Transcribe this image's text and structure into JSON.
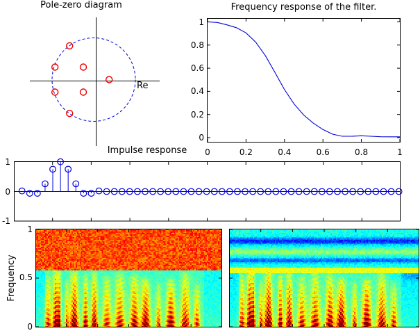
{
  "figure": {
    "background": "#ffffff",
    "line_blue": "#0000dd",
    "marker_red": "#ee0000",
    "axis_black": "#000000"
  },
  "chart_data": [
    {
      "id": "pole_zero",
      "type": "scatter",
      "title": "Pole-zero diagram",
      "xlabel": "Re",
      "unit_circle": {
        "radius": 1,
        "style": "dashed",
        "color": "#0000dd"
      },
      "zeros": [
        {
          "re": -0.58,
          "im": 0.81
        },
        {
          "re": -0.93,
          "im": 0.3
        },
        {
          "re": -0.25,
          "im": 0.3
        },
        {
          "re": 0.37,
          "im": 0.0
        },
        {
          "re": -0.93,
          "im": -0.3
        },
        {
          "re": -0.25,
          "im": -0.3
        },
        {
          "re": -0.58,
          "im": -0.81
        }
      ],
      "marker": "o",
      "marker_color": "#ee0000"
    },
    {
      "id": "frequency_response",
      "type": "line",
      "title": "Frequency response of the filter.",
      "color": "#0000dd",
      "xlim": [
        0,
        1
      ],
      "ylim": [
        0,
        1
      ],
      "x_ticks": [
        "0",
        "0.2",
        "0.4",
        "0.6",
        "0.8",
        "1"
      ],
      "y_ticks": [
        "0",
        "0.2",
        "0.4",
        "0.6",
        "0.8",
        "1"
      ],
      "x": [
        0,
        0.05,
        0.1,
        0.15,
        0.2,
        0.25,
        0.3,
        0.35,
        0.4,
        0.45,
        0.5,
        0.55,
        0.6,
        0.65,
        0.7,
        0.75,
        0.8,
        0.85,
        0.9,
        0.95,
        1.0
      ],
      "y": [
        1.0,
        0.995,
        0.975,
        0.95,
        0.905,
        0.825,
        0.71,
        0.565,
        0.415,
        0.29,
        0.195,
        0.125,
        0.07,
        0.03,
        0.012,
        0.012,
        0.016,
        0.012,
        0.008,
        0.007,
        0.007
      ]
    },
    {
      "id": "impulse_response",
      "type": "stem",
      "title": "Impulse response",
      "color": "#0000dd",
      "ylim": [
        -1,
        1
      ],
      "y_ticks": [
        "-1",
        "0",
        "1"
      ],
      "values": [
        0.02,
        -0.06,
        -0.06,
        0.26,
        0.75,
        1.0,
        0.75,
        0.26,
        -0.06,
        -0.06,
        0.02,
        0,
        0,
        0,
        0,
        0,
        0,
        0,
        0,
        0,
        0,
        0,
        0,
        0,
        0,
        0,
        0,
        0,
        0,
        0,
        0,
        0,
        0,
        0,
        0,
        0,
        0,
        0,
        0,
        0,
        0,
        0,
        0,
        0,
        0,
        0,
        0,
        0,
        0,
        0
      ]
    },
    {
      "id": "spectrogram_noisy",
      "type": "heatmap",
      "colormap": "jet",
      "ylabel": "Frequency",
      "y_ticks": [
        "0",
        "0.5",
        "1"
      ],
      "ylim": [
        0,
        1
      ],
      "content": "speech spectrogram with strong broadband noise occupying frequencies above cutoff",
      "noise_band": {
        "f_min": 0.578,
        "f_max": 1.0,
        "level": 0.8,
        "jitter": 0.17
      },
      "speech_background": {
        "level": 0.425,
        "jitter": 0.07
      },
      "harmonic_spacing": 0.048,
      "seed": 7,
      "syllables": [
        {
          "t": 0.065,
          "w": 0.022,
          "a": 0.6,
          "ft": 0.5,
          "arc": 45
        },
        {
          "t": 0.105,
          "w": 0.018,
          "a": 0.95,
          "ft": 0.56,
          "arc": -25
        },
        {
          "t": 0.125,
          "w": 0.012,
          "a": 0.85,
          "ft": 0.55,
          "arc": 0
        },
        {
          "t": 0.165,
          "w": 0.014,
          "a": 0.55,
          "ft": 0.45,
          "arc": 30
        },
        {
          "t": 0.205,
          "w": 0.028,
          "a": 0.92,
          "ft": 0.54,
          "arc": -55
        },
        {
          "t": 0.268,
          "w": 0.018,
          "a": 0.78,
          "ft": 0.5,
          "arc": 20
        },
        {
          "t": 0.315,
          "w": 0.022,
          "a": 0.85,
          "ft": 0.52,
          "arc": -30
        },
        {
          "t": 0.382,
          "w": 0.028,
          "a": 0.62,
          "ft": 0.48,
          "arc": 40
        },
        {
          "t": 0.452,
          "w": 0.032,
          "a": 0.7,
          "ft": 0.52,
          "arc": -45
        },
        {
          "t": 0.53,
          "w": 0.028,
          "a": 0.8,
          "ft": 0.5,
          "arc": 25
        },
        {
          "t": 0.59,
          "w": 0.03,
          "a": 0.92,
          "ft": 0.46,
          "arc": -35
        },
        {
          "t": 0.66,
          "w": 0.018,
          "a": 0.55,
          "ft": 0.42,
          "arc": 30
        },
        {
          "t": 0.725,
          "w": 0.03,
          "a": 0.88,
          "ft": 0.45,
          "arc": -20
        },
        {
          "t": 0.805,
          "w": 0.032,
          "a": 0.72,
          "ft": 0.52,
          "arc": 35
        },
        {
          "t": 0.868,
          "w": 0.02,
          "a": 0.6,
          "ft": 0.4,
          "arc": -40
        }
      ]
    },
    {
      "id": "spectrogram_filtered",
      "type": "heatmap",
      "colormap": "jet",
      "content": "same speech after lowpass filtering; high band noise removed leaving cyan with dark blue bands and a yellow transition band",
      "uses_syllables_from": "spectrogram_noisy",
      "high_band_background": {
        "level": 0.4,
        "jitter": 0.09
      },
      "dark_bands": [
        {
          "f": 0.88,
          "w": 0.035,
          "depth": 0.24
        },
        {
          "f": 0.68,
          "w": 0.026,
          "depth": 0.18
        }
      ],
      "faint_bright_band": {
        "f": 0.77,
        "w": 0.03,
        "gain": 0.13
      },
      "transition_band": {
        "f_min": 0.555,
        "f_max": 0.603,
        "level": 0.6
      },
      "seed": 11
    }
  ]
}
